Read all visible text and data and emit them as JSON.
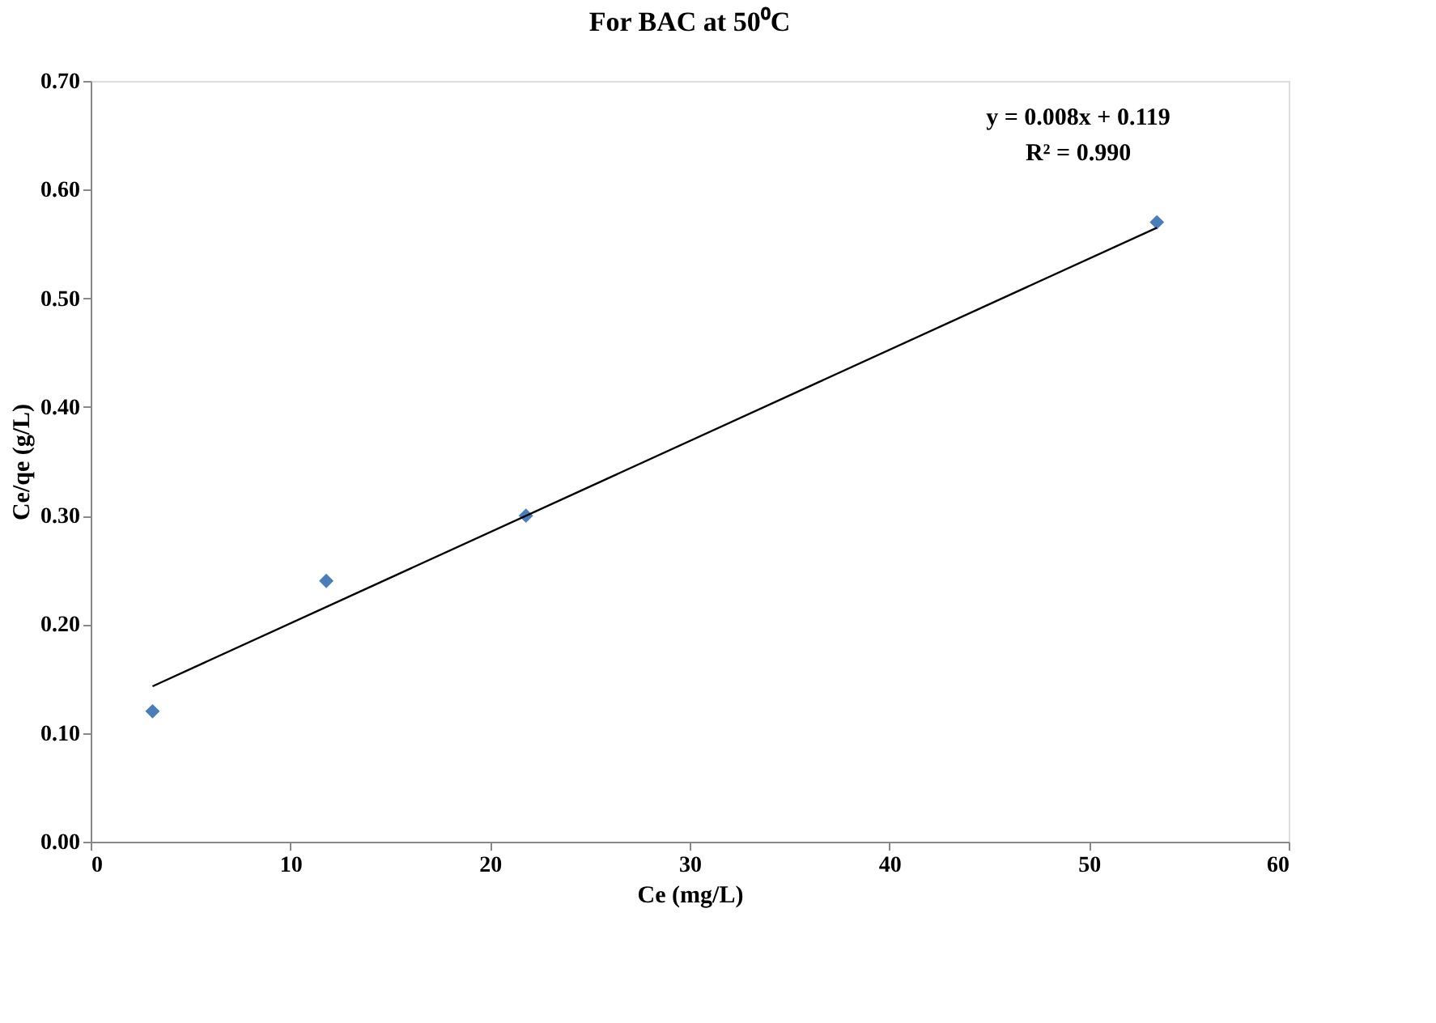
{
  "chart_data": {
    "type": "scatter",
    "title": "For BAC at 50⁰C",
    "xlabel": "Ce (mg/L)",
    "ylabel": "Ce/qe (g/L)",
    "xlim": [
      0,
      60
    ],
    "xticks": [
      0,
      10,
      20,
      30,
      40,
      50,
      60
    ],
    "ylim": [
      0,
      0.7
    ],
    "yticks": [
      {
        "value": 0,
        "label": "0.00"
      },
      {
        "value": 0.1,
        "label": "0.10"
      },
      {
        "value": 0.2,
        "label": "0.20"
      },
      {
        "value": 0.3,
        "label": "0.30"
      },
      {
        "value": 0.4,
        "label": "0.40"
      },
      {
        "value": 0.5,
        "label": "0.50"
      },
      {
        "value": 0.6,
        "label": "0.60"
      },
      {
        "value": 0.7,
        "label": "0.70"
      }
    ],
    "grid": false,
    "marker": "diamond",
    "series": [
      {
        "color": "#4a7ebb",
        "x": [
          3.1,
          11.8,
          21.8,
          53.4
        ],
        "values": [
          0.12,
          0.24,
          0.3,
          0.57
        ]
      },
      {
        "type": "line",
        "color": "#000000",
        "x": [
          3.1,
          53.4
        ],
        "values": [
          0.143,
          0.565
        ],
        "marker": "none"
      }
    ],
    "annotations": [
      "y = 0.008x + 0.119",
      "R² = 0.990"
    ]
  }
}
